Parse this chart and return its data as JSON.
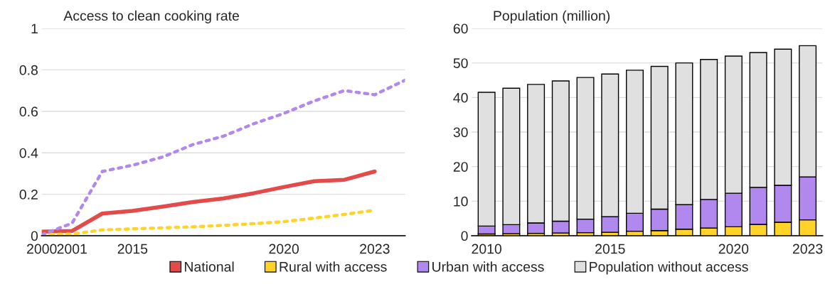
{
  "chart_data": [
    {
      "type": "line",
      "title": "Access to clean cooking rate",
      "categories": [
        "2000",
        "2001",
        null,
        "2015",
        null,
        null,
        null,
        null,
        "2020",
        null,
        null,
        "2023",
        null
      ],
      "series": [
        {
          "name": "National",
          "color": "#e34a4a",
          "line_style": "solid",
          "values": [
            0.02,
            0.023,
            0.107,
            0.12,
            0.14,
            0.163,
            0.18,
            0.205,
            0.235,
            0.263,
            0.27,
            0.31,
            null
          ]
        },
        {
          "name": "Rural with access",
          "color": "#ffd327",
          "line_style": "dotted",
          "values": [
            0.005,
            0.008,
            0.028,
            0.033,
            0.038,
            0.043,
            0.05,
            0.058,
            0.068,
            0.085,
            0.103,
            0.123,
            null
          ]
        },
        {
          "name": "Urban with access",
          "color": "#b088ee",
          "line_style": "dotted",
          "values": [
            0.005,
            0.06,
            0.31,
            0.34,
            0.38,
            0.44,
            0.48,
            0.54,
            0.59,
            0.65,
            0.7,
            0.68,
            0.75
          ]
        }
      ],
      "ylim": [
        0,
        1
      ],
      "yticks": [
        0,
        0.2,
        0.4,
        0.6,
        0.8,
        1
      ],
      "grid": "y",
      "legend": "bottom"
    },
    {
      "type": "bar",
      "stacked": true,
      "title": "Population (million)",
      "categories": [
        "2010",
        null,
        null,
        null,
        null,
        "2015",
        null,
        null,
        null,
        null,
        "2020",
        null,
        null,
        "2023"
      ],
      "series": [
        {
          "name": "Rural with access",
          "color": "#ffd327",
          "values": [
            0.5,
            0.6,
            0.7,
            0.8,
            0.9,
            1.0,
            1.3,
            1.5,
            1.9,
            2.2,
            2.6,
            3.3,
            3.9,
            4.6
          ]
        },
        {
          "name": "Urban with access",
          "color": "#b088ee",
          "values": [
            2.3,
            2.6,
            3.0,
            3.4,
            3.9,
            4.5,
            5.2,
            6.2,
            7.1,
            8.3,
            9.7,
            10.7,
            10.7,
            12.4
          ]
        },
        {
          "name": "Population without access",
          "color": "#e0e0e0",
          "values": [
            38.7,
            39.5,
            40.1,
            40.6,
            41.0,
            41.3,
            41.4,
            41.3,
            41.0,
            40.5,
            39.7,
            39.0,
            39.4,
            38.0
          ]
        }
      ],
      "ylim": [
        0,
        60
      ],
      "yticks": [
        0,
        10,
        20,
        30,
        40,
        50,
        60
      ],
      "grid": "y",
      "legend": "bottom"
    }
  ]
}
